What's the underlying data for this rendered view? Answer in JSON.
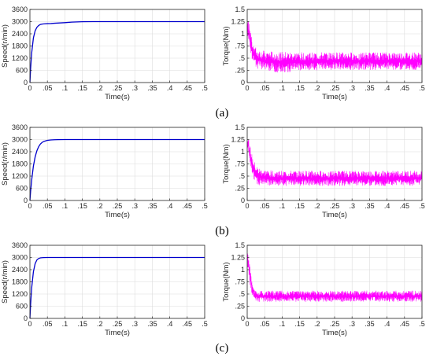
{
  "figure_labels": [
    "(a)",
    "(b)",
    "(c)"
  ],
  "chart_data": [
    {
      "type": "line",
      "panel": "(a)",
      "quantity": "speed",
      "xlabel": "Time(s)",
      "ylabel": "Speed(r/min)",
      "xlim": [
        0,
        0.5
      ],
      "ylim": [
        0,
        3600
      ],
      "xticks": [
        0,
        0.05,
        0.1,
        0.15,
        0.2,
        0.25,
        0.3,
        0.35,
        0.4,
        0.45,
        0.5
      ],
      "yticks": [
        0,
        600,
        1200,
        1800,
        2400,
        3000,
        3600
      ],
      "grid": true,
      "color": "#0000cc",
      "series": [
        {
          "x": [
            0,
            0.002,
            0.005,
            0.01,
            0.015,
            0.02,
            0.025,
            0.03,
            0.035,
            0.04,
            0.05,
            0.06,
            0.07,
            0.08,
            0.1,
            0.12,
            0.15,
            0.18,
            0.2,
            0.25,
            0.3,
            0.35,
            0.4,
            0.45,
            0.5
          ],
          "y": [
            0,
            700,
            1450,
            2200,
            2550,
            2720,
            2810,
            2860,
            2880,
            2890,
            2900,
            2905,
            2920,
            2930,
            2950,
            2975,
            2995,
            3000,
            3000,
            3000,
            3000,
            3000,
            3000,
            3000,
            3000
          ]
        }
      ]
    },
    {
      "type": "line",
      "panel": "(a)",
      "quantity": "torque",
      "xlabel": "Time(s)",
      "ylabel": "Torque(Nm)",
      "xlim": [
        0,
        0.5
      ],
      "ylim": [
        0,
        1.5
      ],
      "xticks": [
        0,
        0.05,
        0.1,
        0.15,
        0.2,
        0.25,
        0.3,
        0.35,
        0.4,
        0.45,
        0.5
      ],
      "yticks": [
        0,
        0.25,
        0.5,
        0.75,
        1,
        1.25,
        1.5
      ],
      "grid": true,
      "color": "#ff00ff",
      "series": [
        {
          "x": [
            0,
            0.005,
            0.01,
            0.015,
            0.02,
            0.025,
            0.03,
            0.04,
            0.05,
            0.07,
            0.1,
            0.15,
            0.2,
            0.25,
            0.3,
            0.35,
            0.4,
            0.45,
            0.5
          ],
          "y_upper": [
            1.3,
            1.25,
            1.05,
            0.9,
            0.78,
            0.72,
            0.68,
            0.66,
            0.65,
            0.64,
            0.63,
            0.62,
            0.62,
            0.62,
            0.62,
            0.62,
            0.62,
            0.62,
            0.62
          ],
          "y_lower": [
            1.0,
            0.85,
            0.62,
            0.45,
            0.35,
            0.3,
            0.28,
            0.26,
            0.25,
            0.22,
            0.2,
            0.24,
            0.25,
            0.26,
            0.26,
            0.26,
            0.26,
            0.26,
            0.26
          ]
        }
      ]
    },
    {
      "type": "line",
      "panel": "(b)",
      "quantity": "speed",
      "xlabel": "Time(s)",
      "ylabel": "Speed(r/min)",
      "xlim": [
        0,
        0.5
      ],
      "ylim": [
        0,
        3600
      ],
      "xticks": [
        0,
        0.05,
        0.1,
        0.15,
        0.2,
        0.25,
        0.3,
        0.35,
        0.4,
        0.45,
        0.5
      ],
      "yticks": [
        0,
        600,
        1200,
        1800,
        2400,
        3000,
        3600
      ],
      "grid": true,
      "color": "#0000cc",
      "series": [
        {
          "x": [
            0,
            0.002,
            0.005,
            0.01,
            0.015,
            0.02,
            0.025,
            0.03,
            0.035,
            0.04,
            0.05,
            0.06,
            0.07,
            0.08,
            0.1,
            0.15,
            0.2,
            0.25,
            0.3,
            0.35,
            0.4,
            0.45,
            0.5
          ],
          "y": [
            0,
            450,
            1000,
            1700,
            2150,
            2450,
            2650,
            2780,
            2860,
            2910,
            2960,
            2980,
            2990,
            2995,
            3000,
            3000,
            3000,
            3000,
            3000,
            3000,
            3000,
            3000,
            3000
          ]
        }
      ]
    },
    {
      "type": "line",
      "panel": "(b)",
      "quantity": "torque",
      "xlabel": "Time(s)",
      "ylabel": "Torque(Nm)",
      "xlim": [
        0,
        0.5
      ],
      "ylim": [
        0,
        1.5
      ],
      "xticks": [
        0,
        0.05,
        0.1,
        0.15,
        0.2,
        0.25,
        0.3,
        0.35,
        0.4,
        0.45,
        0.5
      ],
      "yticks": [
        0,
        0.25,
        0.5,
        0.75,
        1,
        1.25,
        1.5
      ],
      "grid": true,
      "color": "#ff00ff",
      "series": [
        {
          "x": [
            0,
            0.005,
            0.01,
            0.015,
            0.02,
            0.025,
            0.03,
            0.04,
            0.05,
            0.07,
            0.1,
            0.15,
            0.2,
            0.25,
            0.3,
            0.35,
            0.4,
            0.45,
            0.5
          ],
          "y_upper": [
            1.35,
            1.25,
            1.05,
            0.9,
            0.8,
            0.73,
            0.68,
            0.65,
            0.63,
            0.62,
            0.61,
            0.61,
            0.61,
            0.61,
            0.61,
            0.61,
            0.61,
            0.61,
            0.61
          ],
          "y_lower": [
            1.05,
            0.9,
            0.7,
            0.52,
            0.42,
            0.36,
            0.33,
            0.3,
            0.3,
            0.3,
            0.3,
            0.3,
            0.3,
            0.3,
            0.3,
            0.3,
            0.3,
            0.3,
            0.3
          ]
        }
      ]
    },
    {
      "type": "line",
      "panel": "(c)",
      "quantity": "speed",
      "xlabel": "Time(s)",
      "ylabel": "Speed(r/min)",
      "xlim": [
        0,
        0.5
      ],
      "ylim": [
        0,
        3600
      ],
      "xticks": [
        0,
        0.05,
        0.1,
        0.15,
        0.2,
        0.25,
        0.3,
        0.35,
        0.4,
        0.45,
        0.5
      ],
      "yticks": [
        0,
        600,
        1200,
        1800,
        2400,
        3000,
        3600
      ],
      "grid": true,
      "color": "#0000cc",
      "series": [
        {
          "x": [
            0,
            0.002,
            0.005,
            0.01,
            0.015,
            0.02,
            0.025,
            0.03,
            0.035,
            0.04,
            0.05,
            0.06,
            0.08,
            0.1,
            0.15,
            0.2,
            0.25,
            0.3,
            0.35,
            0.4,
            0.45,
            0.5
          ],
          "y": [
            0,
            700,
            1500,
            2300,
            2700,
            2880,
            2950,
            2980,
            2990,
            2995,
            3000,
            3000,
            3000,
            3000,
            3000,
            3000,
            3000,
            3000,
            3000,
            3000,
            3000,
            3000
          ]
        }
      ]
    },
    {
      "type": "line",
      "panel": "(c)",
      "quantity": "torque",
      "xlabel": "Time(s)",
      "ylabel": "Torque(Nm)",
      "xlim": [
        0,
        0.5
      ],
      "ylim": [
        0,
        1.5
      ],
      "xticks": [
        0,
        0.05,
        0.1,
        0.15,
        0.2,
        0.25,
        0.3,
        0.35,
        0.4,
        0.45,
        0.5
      ],
      "yticks": [
        0,
        0.25,
        0.5,
        0.75,
        1,
        1.25,
        1.5
      ],
      "grid": true,
      "color": "#ff00ff",
      "series": [
        {
          "x": [
            0,
            0.005,
            0.01,
            0.015,
            0.02,
            0.025,
            0.03,
            0.04,
            0.05,
            0.07,
            0.1,
            0.15,
            0.2,
            0.25,
            0.3,
            0.35,
            0.4,
            0.45,
            0.5
          ],
          "y_upper": [
            1.4,
            1.2,
            0.95,
            0.75,
            0.63,
            0.58,
            0.57,
            0.57,
            0.57,
            0.57,
            0.57,
            0.57,
            0.57,
            0.57,
            0.57,
            0.57,
            0.57,
            0.57,
            0.57
          ],
          "y_lower": [
            1.1,
            0.85,
            0.6,
            0.45,
            0.38,
            0.35,
            0.34,
            0.34,
            0.34,
            0.34,
            0.34,
            0.34,
            0.34,
            0.34,
            0.34,
            0.34,
            0.34,
            0.34,
            0.34
          ]
        }
      ]
    }
  ]
}
